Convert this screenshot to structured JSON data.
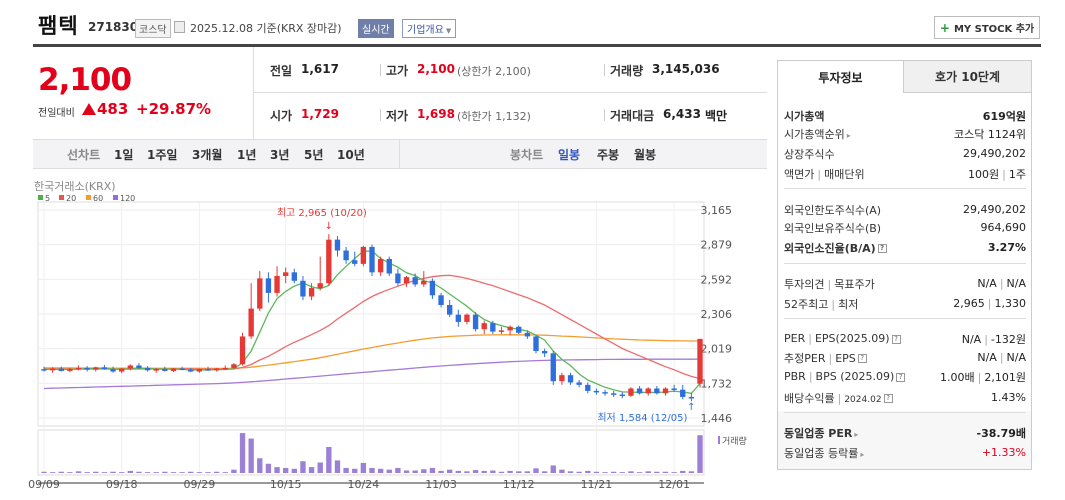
{
  "header": {
    "name": "팸텍",
    "code": "271830",
    "market": "코스닥",
    "date_text": "2025.12.08 기준(KRX 장마감)",
    "realtime_label": "실시간",
    "company_label": "기업개요",
    "mystock_label": "MY STOCK 추가"
  },
  "price": {
    "current": "2,100",
    "change_label": "전일대비",
    "change_value": "483",
    "change_pct": "+29.87%"
  },
  "quote": {
    "prev_label": "전일",
    "prev_value": "1,617",
    "high_label": "고가",
    "high_value": "2,100",
    "high_sub": "(상한가 2,100)",
    "volume_label": "거래량",
    "volume_value": "3,145,036",
    "open_label": "시가",
    "open_value": "1,729",
    "low_label": "저가",
    "low_value": "1,698",
    "low_sub": "(하한가 1,132)",
    "amount_label": "거래대금",
    "amount_value": "6,433",
    "amount_unit": "백만"
  },
  "period_bar": {
    "line_label": "선차트",
    "line_options": [
      "1일",
      "1주일",
      "3개월",
      "1년",
      "3년",
      "5년",
      "10년"
    ],
    "candle_label": "봉차트",
    "candle_options": [
      "일봉",
      "주봉",
      "월봉"
    ],
    "active_candle": "일봉"
  },
  "sidebar": {
    "tab_info": "투자정보",
    "tab_order": "호가 10단계",
    "rows": [
      {
        "k": "시가총액",
        "v": "619억원"
      },
      {
        "k": "시가총액순위",
        "v": "코스닥 1124위"
      },
      {
        "k": "상장주식수",
        "v": "29,490,202"
      },
      {
        "k": "액면가",
        "k2": "매매단위",
        "v": "100원",
        "v2": "1주"
      },
      {
        "k": "외국인한도주식수(A)",
        "v": "29,490,202"
      },
      {
        "k": "외국인보유주식수(B)",
        "v": "964,690"
      },
      {
        "k": "외국인소진율(B/A)",
        "v": "3.27%"
      },
      {
        "k": "투자의견",
        "k2": "목표주가",
        "v": "N/A",
        "v2": "N/A"
      },
      {
        "k": "52주최고",
        "k2": "최저",
        "v": "2,965",
        "v2": "1,330"
      },
      {
        "k": "PER",
        "k2": "EPS(2025.09)",
        "v": "N/A",
        "v2": "-132원"
      },
      {
        "k": "추정PER",
        "k2": "EPS",
        "v": "N/A",
        "v2": "N/A"
      },
      {
        "k": "PBR",
        "k2": "BPS (2025.09)",
        "v": "1.00배",
        "v2": "2,101원"
      },
      {
        "k": "배당수익률",
        "k2": "2024.02",
        "v": "1.43%"
      },
      {
        "k": "동일업종 PER",
        "v": "-38.79배"
      },
      {
        "k": "동일업종 등락률",
        "v": "+1.33%"
      }
    ]
  },
  "chart_data": {
    "type": "candlestick",
    "source_label": "한국거래소(KRX)",
    "legend": [
      {
        "name": "5",
        "color": "#4caf50"
      },
      {
        "name": "20",
        "color": "#ef5350"
      },
      {
        "name": "60",
        "color": "#f59c2f"
      },
      {
        "name": "120",
        "color": "#9c6ad6"
      }
    ],
    "y_ticks": [
      "3,165",
      "2,879",
      "2,592",
      "2,306",
      "2,019",
      "1,732",
      "1,446"
    ],
    "y_range": [
      1446,
      3165
    ],
    "x_ticks": [
      "09/09",
      "09/18",
      "09/29",
      "10/15",
      "10/24",
      "11/03",
      "11/12",
      "11/21",
      "12/01"
    ],
    "high_annotation": "최고 2,965 (10/20)",
    "low_annotation": "최저 1,584 (12/05)",
    "volume_label": "거래량",
    "candles": [
      [
        1850,
        1870,
        1830,
        1840
      ],
      [
        1840,
        1865,
        1820,
        1855
      ],
      [
        1855,
        1870,
        1830,
        1835
      ],
      [
        1835,
        1860,
        1825,
        1850
      ],
      [
        1850,
        1880,
        1840,
        1860
      ],
      [
        1860,
        1875,
        1830,
        1845
      ],
      [
        1845,
        1870,
        1830,
        1865
      ],
      [
        1865,
        1885,
        1845,
        1850
      ],
      [
        1850,
        1870,
        1820,
        1830
      ],
      [
        1830,
        1860,
        1815,
        1855
      ],
      [
        1855,
        1890,
        1840,
        1880
      ],
      [
        1880,
        1900,
        1850,
        1860
      ],
      [
        1860,
        1875,
        1830,
        1840
      ],
      [
        1840,
        1860,
        1820,
        1850
      ],
      [
        1850,
        1870,
        1830,
        1835
      ],
      [
        1835,
        1860,
        1825,
        1855
      ],
      [
        1855,
        1870,
        1840,
        1845
      ],
      [
        1845,
        1860,
        1825,
        1830
      ],
      [
        1830,
        1855,
        1820,
        1850
      ],
      [
        1850,
        1870,
        1835,
        1840
      ],
      [
        1840,
        1860,
        1830,
        1855
      ],
      [
        1855,
        1880,
        1845,
        1860
      ],
      [
        1860,
        1900,
        1850,
        1890
      ],
      [
        1890,
        2150,
        1880,
        2120
      ],
      [
        2120,
        2560,
        2100,
        2350
      ],
      [
        2350,
        2660,
        2330,
        2600
      ],
      [
        2600,
        2650,
        2400,
        2480
      ],
      [
        2480,
        2700,
        2450,
        2620
      ],
      [
        2620,
        2690,
        2560,
        2650
      ],
      [
        2650,
        2680,
        2560,
        2580
      ],
      [
        2580,
        2620,
        2420,
        2450
      ],
      [
        2450,
        2560,
        2420,
        2520
      ],
      [
        2520,
        2780,
        2500,
        2560
      ],
      [
        2560,
        2965,
        2540,
        2920
      ],
      [
        2920,
        2950,
        2780,
        2830
      ],
      [
        2830,
        2860,
        2720,
        2750
      ],
      [
        2750,
        2820,
        2700,
        2720
      ],
      [
        2720,
        2870,
        2700,
        2860
      ],
      [
        2860,
        2880,
        2620,
        2650
      ],
      [
        2650,
        2780,
        2620,
        2760
      ],
      [
        2760,
        2780,
        2620,
        2640
      ],
      [
        2640,
        2680,
        2540,
        2560
      ],
      [
        2560,
        2620,
        2530,
        2610
      ],
      [
        2610,
        2640,
        2530,
        2550
      ],
      [
        2550,
        2660,
        2530,
        2580
      ],
      [
        2580,
        2600,
        2430,
        2460
      ],
      [
        2460,
        2480,
        2360,
        2380
      ],
      [
        2380,
        2420,
        2280,
        2300
      ],
      [
        2300,
        2340,
        2200,
        2240
      ],
      [
        2240,
        2310,
        2220,
        2300
      ],
      [
        2300,
        2320,
        2160,
        2180
      ],
      [
        2180,
        2250,
        2140,
        2230
      ],
      [
        2230,
        2250,
        2140,
        2160
      ],
      [
        2160,
        2200,
        2140,
        2170
      ],
      [
        2170,
        2210,
        2130,
        2200
      ],
      [
        2200,
        2210,
        2140,
        2150
      ],
      [
        2150,
        2170,
        2100,
        2120
      ],
      [
        2120,
        2130,
        1980,
        2000
      ],
      [
        2000,
        2020,
        1950,
        1980
      ],
      [
        1980,
        2000,
        1720,
        1750
      ],
      [
        1750,
        1820,
        1720,
        1800
      ],
      [
        1800,
        1820,
        1720,
        1740
      ],
      [
        1740,
        1760,
        1700,
        1720
      ],
      [
        1720,
        1740,
        1650,
        1670
      ],
      [
        1670,
        1690,
        1640,
        1660
      ],
      [
        1660,
        1680,
        1630,
        1650
      ],
      [
        1650,
        1670,
        1620,
        1640
      ],
      [
        1640,
        1660,
        1610,
        1630
      ],
      [
        1630,
        1700,
        1620,
        1690
      ],
      [
        1690,
        1710,
        1640,
        1650
      ],
      [
        1650,
        1700,
        1630,
        1690
      ],
      [
        1690,
        1710,
        1640,
        1650
      ],
      [
        1650,
        1700,
        1630,
        1690
      ],
      [
        1690,
        1720,
        1660,
        1680
      ],
      [
        1680,
        1720,
        1600,
        1620
      ],
      [
        1620,
        1650,
        1584,
        1617
      ],
      [
        1729,
        2100,
        1698,
        2100
      ]
    ],
    "ma5": [
      1848,
      1848,
      1847,
      1848,
      1850,
      1852,
      1855,
      1854,
      1851,
      1849,
      1853,
      1858,
      1855,
      1850,
      1851,
      1850,
      1848,
      1843,
      1843,
      1844,
      1845,
      1847,
      1853,
      1903,
      2000,
      2155,
      2314,
      2433,
      2492,
      2536,
      2562,
      2531,
      2514,
      2542,
      2630,
      2700,
      2763,
      2825,
      2826,
      2764,
      2726,
      2692,
      2646,
      2623,
      2580,
      2563,
      2520,
      2470,
      2420,
      2370,
      2310,
      2260,
      2230,
      2210,
      2190,
      2180,
      2165,
      2130,
      2090,
      2000,
      1930,
      1880,
      1810,
      1760,
      1730,
      1700,
      1680,
      1662,
      1660,
      1658,
      1657,
      1658,
      1660,
      1668,
      1660,
      1650,
      1730
    ],
    "ma20": [
      1850,
      1850,
      1850,
      1850,
      1851,
      1851,
      1851,
      1851,
      1850,
      1850,
      1850,
      1851,
      1851,
      1851,
      1851,
      1851,
      1851,
      1851,
      1850,
      1850,
      1850,
      1850,
      1851,
      1864,
      1888,
      1925,
      1956,
      1995,
      2036,
      2072,
      2102,
      2135,
      2170,
      2210,
      2264,
      2312,
      2360,
      2410,
      2450,
      2482,
      2510,
      2535,
      2560,
      2585,
      2600,
      2614,
      2622,
      2625,
      2615,
      2600,
      2580,
      2560,
      2540,
      2515,
      2490,
      2465,
      2440,
      2410,
      2380,
      2340,
      2300,
      2260,
      2220,
      2180,
      2140,
      2100,
      2060,
      2020,
      1990,
      1960,
      1930,
      1900,
      1870,
      1845,
      1815,
      1790,
      1770
    ],
    "ma60": [
      1860,
      1860,
      1860,
      1860,
      1859,
      1859,
      1859,
      1859,
      1858,
      1858,
      1858,
      1858,
      1858,
      1857,
      1857,
      1857,
      1857,
      1857,
      1857,
      1856,
      1856,
      1856,
      1857,
      1860,
      1866,
      1875,
      1883,
      1892,
      1902,
      1912,
      1922,
      1932,
      1944,
      1958,
      1973,
      1987,
      2001,
      2016,
      2029,
      2042,
      2054,
      2066,
      2078,
      2089,
      2099,
      2108,
      2114,
      2120,
      2124,
      2127,
      2130,
      2132,
      2133,
      2134,
      2134,
      2134,
      2133,
      2132,
      2130,
      2127,
      2123,
      2120,
      2116,
      2112,
      2108,
      2104,
      2100,
      2097,
      2094,
      2091,
      2089,
      2087,
      2085,
      2084,
      2083,
      2082,
      2082
    ],
    "ma120": [
      1690,
      1692,
      1694,
      1696,
      1698,
      1700,
      1702,
      1704,
      1706,
      1708,
      1710,
      1712,
      1714,
      1716,
      1718,
      1720,
      1722,
      1724,
      1726,
      1728,
      1730,
      1733,
      1736,
      1740,
      1745,
      1750,
      1756,
      1762,
      1768,
      1774,
      1780,
      1786,
      1792,
      1798,
      1805,
      1811,
      1817,
      1823,
      1829,
      1835,
      1841,
      1847,
      1853,
      1859,
      1865,
      1871,
      1876,
      1881,
      1886,
      1891,
      1895,
      1899,
      1903,
      1907,
      1911,
      1914,
      1917,
      1920,
      1922,
      1924,
      1925,
      1926,
      1927,
      1928,
      1929,
      1930,
      1930,
      1931,
      1931,
      1931,
      1932,
      1932,
      1932,
      1932,
      1932,
      1932,
      1933
    ],
    "volume": [
      0.03,
      0.02,
      0.03,
      0.02,
      0.04,
      0.02,
      0.03,
      0.02,
      0.03,
      0.02,
      0.05,
      0.03,
      0.02,
      0.02,
      0.03,
      0.02,
      0.02,
      0.03,
      0.02,
      0.02,
      0.03,
      0.02,
      0.08,
      0.95,
      0.82,
      0.35,
      0.22,
      0.14,
      0.12,
      0.1,
      0.28,
      0.14,
      0.25,
      0.62,
      0.3,
      0.12,
      0.1,
      0.24,
      0.12,
      0.1,
      0.08,
      0.12,
      0.06,
      0.06,
      0.09,
      0.12,
      0.05,
      0.08,
      0.05,
      0.04,
      0.07,
      0.05,
      0.06,
      0.03,
      0.05,
      0.04,
      0.04,
      0.11,
      0.04,
      0.18,
      0.08,
      0.04,
      0.03,
      0.05,
      0.03,
      0.02,
      0.03,
      0.02,
      0.04,
      0.02,
      0.04,
      0.03,
      0.03,
      0.02,
      0.05,
      0.04,
      0.9
    ]
  }
}
